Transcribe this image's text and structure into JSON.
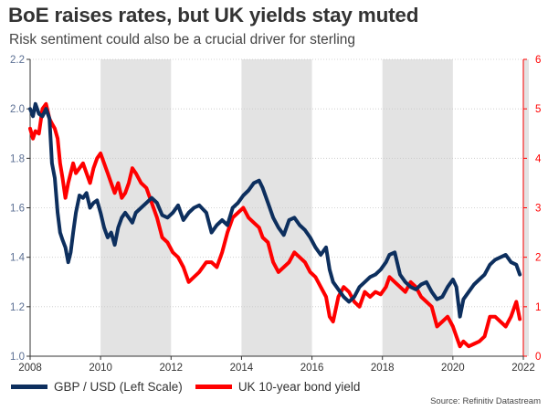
{
  "header": {
    "title": "BoE raises rates, but UK yields stay muted",
    "subtitle": "Risk sentiment could also be a crucial driver for sterling"
  },
  "source": "Source: Refinitiv Datastream",
  "colors": {
    "gbpusd": "#0d2f5e",
    "yield": "#ff0000",
    "shade": "#e3e3e3",
    "left_axis": "#5b6f93",
    "right_axis": "#ff0000"
  },
  "chart_data": {
    "type": "line",
    "title": "BoE raises rates, but UK yields stay muted",
    "x_range": [
      2008,
      2022
    ],
    "x_ticks": [
      "2008",
      "2010",
      "2012",
      "2014",
      "2016",
      "2018",
      "2020",
      "2022"
    ],
    "y_left": {
      "range": [
        1.0,
        2.2
      ],
      "ticks": [
        "1.0",
        "1.2",
        "1.4",
        "1.6",
        "1.8",
        "2.0",
        "2.2"
      ]
    },
    "y_right": {
      "range": [
        0,
        6
      ],
      "ticks": [
        "0",
        "1",
        "2",
        "3",
        "4",
        "5",
        "6"
      ]
    },
    "shaded_periods": [
      [
        2010,
        2012
      ],
      [
        2014,
        2016
      ],
      [
        2018,
        2020
      ],
      [
        2021.98,
        2022.2
      ]
    ],
    "series": [
      {
        "name": "GBP / USD (Left Scale)",
        "axis": "left",
        "x": [
          2008.0,
          2008.08,
          2008.15,
          2008.25,
          2008.35,
          2008.45,
          2008.55,
          2008.62,
          2008.7,
          2008.78,
          2008.85,
          2008.92,
          2009.0,
          2009.08,
          2009.15,
          2009.22,
          2009.3,
          2009.4,
          2009.5,
          2009.6,
          2009.7,
          2009.8,
          2009.9,
          2010.0,
          2010.1,
          2010.2,
          2010.3,
          2010.4,
          2010.5,
          2010.6,
          2010.7,
          2010.8,
          2010.9,
          2011.0,
          2011.15,
          2011.3,
          2011.45,
          2011.6,
          2011.75,
          2011.9,
          2012.05,
          2012.2,
          2012.35,
          2012.5,
          2012.65,
          2012.8,
          2013.0,
          2013.15,
          2013.3,
          2013.45,
          2013.6,
          2013.75,
          2013.9,
          2014.05,
          2014.2,
          2014.35,
          2014.5,
          2014.6,
          2014.75,
          2014.9,
          2015.05,
          2015.2,
          2015.35,
          2015.5,
          2015.65,
          2015.8,
          2015.95,
          2016.1,
          2016.25,
          2016.4,
          2016.5,
          2016.6,
          2016.75,
          2016.9,
          2017.05,
          2017.2,
          2017.35,
          2017.5,
          2017.65,
          2017.8,
          2017.95,
          2018.1,
          2018.2,
          2018.35,
          2018.5,
          2018.65,
          2018.8,
          2018.95,
          2019.1,
          2019.25,
          2019.4,
          2019.55,
          2019.7,
          2019.85,
          2020.0,
          2020.1,
          2020.2,
          2020.3,
          2020.45,
          2020.6,
          2020.75,
          2020.9,
          2021.05,
          2021.2,
          2021.35,
          2021.5,
          2021.65,
          2021.8,
          2021.9
        ],
        "values": [
          2.0,
          1.97,
          2.02,
          1.98,
          1.97,
          2.0,
          1.96,
          1.78,
          1.72,
          1.58,
          1.5,
          1.47,
          1.44,
          1.38,
          1.42,
          1.5,
          1.58,
          1.65,
          1.64,
          1.66,
          1.6,
          1.62,
          1.63,
          1.58,
          1.52,
          1.48,
          1.5,
          1.45,
          1.52,
          1.56,
          1.58,
          1.56,
          1.54,
          1.58,
          1.6,
          1.62,
          1.64,
          1.62,
          1.57,
          1.56,
          1.58,
          1.61,
          1.55,
          1.58,
          1.6,
          1.61,
          1.58,
          1.5,
          1.53,
          1.55,
          1.53,
          1.6,
          1.62,
          1.65,
          1.67,
          1.7,
          1.71,
          1.68,
          1.62,
          1.56,
          1.52,
          1.49,
          1.55,
          1.56,
          1.53,
          1.51,
          1.48,
          1.44,
          1.41,
          1.44,
          1.35,
          1.3,
          1.27,
          1.24,
          1.22,
          1.24,
          1.28,
          1.3,
          1.32,
          1.33,
          1.35,
          1.38,
          1.41,
          1.42,
          1.33,
          1.3,
          1.28,
          1.27,
          1.29,
          1.3,
          1.26,
          1.23,
          1.24,
          1.28,
          1.31,
          1.28,
          1.16,
          1.23,
          1.26,
          1.29,
          1.31,
          1.33,
          1.37,
          1.39,
          1.4,
          1.41,
          1.38,
          1.37,
          1.33
        ]
      },
      {
        "name": "UK 10-year bond yield",
        "axis": "right",
        "x": [
          2008.0,
          2008.08,
          2008.15,
          2008.25,
          2008.35,
          2008.45,
          2008.55,
          2008.62,
          2008.7,
          2008.78,
          2008.85,
          2008.92,
          2009.0,
          2009.08,
          2009.15,
          2009.22,
          2009.3,
          2009.4,
          2009.5,
          2009.6,
          2009.7,
          2009.8,
          2009.9,
          2010.0,
          2010.1,
          2010.2,
          2010.3,
          2010.4,
          2010.5,
          2010.6,
          2010.7,
          2010.8,
          2010.9,
          2011.0,
          2011.15,
          2011.3,
          2011.45,
          2011.6,
          2011.75,
          2011.9,
          2012.05,
          2012.2,
          2012.35,
          2012.5,
          2012.65,
          2012.8,
          2013.0,
          2013.15,
          2013.3,
          2013.45,
          2013.6,
          2013.75,
          2013.9,
          2014.05,
          2014.2,
          2014.35,
          2014.5,
          2014.6,
          2014.75,
          2014.9,
          2015.05,
          2015.2,
          2015.35,
          2015.5,
          2015.65,
          2015.8,
          2015.95,
          2016.1,
          2016.25,
          2016.4,
          2016.5,
          2016.6,
          2016.75,
          2016.9,
          2017.05,
          2017.2,
          2017.35,
          2017.5,
          2017.65,
          2017.8,
          2017.95,
          2018.1,
          2018.2,
          2018.35,
          2018.5,
          2018.65,
          2018.8,
          2018.95,
          2019.1,
          2019.25,
          2019.4,
          2019.55,
          2019.7,
          2019.85,
          2020.0,
          2020.1,
          2020.2,
          2020.3,
          2020.45,
          2020.6,
          2020.75,
          2020.9,
          2021.05,
          2021.2,
          2021.35,
          2021.5,
          2021.65,
          2021.8,
          2021.9
        ],
        "values": [
          4.6,
          4.4,
          4.55,
          4.5,
          5.0,
          5.1,
          4.8,
          4.7,
          4.6,
          4.4,
          3.9,
          3.6,
          3.2,
          3.5,
          3.7,
          3.9,
          3.7,
          3.8,
          3.9,
          3.7,
          3.5,
          3.8,
          4.0,
          4.1,
          3.9,
          3.7,
          3.5,
          3.3,
          3.5,
          3.2,
          3.3,
          3.5,
          3.8,
          3.7,
          3.5,
          3.4,
          3.1,
          2.8,
          2.4,
          2.3,
          2.1,
          2.0,
          1.8,
          1.5,
          1.6,
          1.7,
          1.9,
          1.9,
          1.8,
          2.1,
          2.5,
          2.8,
          2.9,
          3.0,
          2.8,
          2.7,
          2.6,
          2.4,
          2.3,
          1.9,
          1.7,
          1.8,
          1.9,
          2.1,
          2.0,
          1.9,
          1.7,
          1.6,
          1.4,
          1.2,
          0.8,
          0.7,
          1.2,
          1.4,
          1.3,
          1.1,
          1.0,
          1.3,
          1.2,
          1.3,
          1.25,
          1.4,
          1.6,
          1.5,
          1.4,
          1.3,
          1.5,
          1.4,
          1.2,
          1.1,
          1.0,
          0.6,
          0.7,
          0.8,
          0.6,
          0.4,
          0.2,
          0.3,
          0.2,
          0.25,
          0.3,
          0.4,
          0.8,
          0.8,
          0.7,
          0.6,
          0.8,
          1.1,
          0.75
        ]
      }
    ]
  }
}
